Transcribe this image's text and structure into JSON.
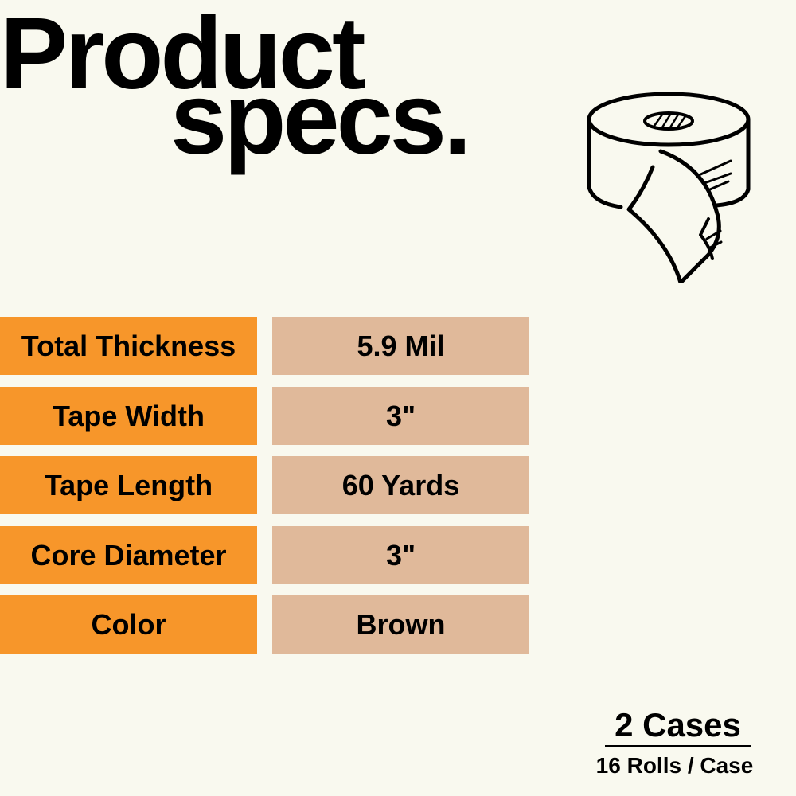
{
  "title": {
    "line1": "Product",
    "line2": "specs."
  },
  "illustration": {
    "icon": "tape-roll-icon"
  },
  "specs": [
    {
      "label": "Total Thickness",
      "value": "5.9 Mil"
    },
    {
      "label": "Tape Width",
      "value": "3\""
    },
    {
      "label": "Tape Length",
      "value": "60 Yards"
    },
    {
      "label": "Core Diameter",
      "value": "3\""
    },
    {
      "label": "Color",
      "value": "Brown"
    }
  ],
  "quantity": {
    "cases": "2 Cases",
    "per_case": "16 Rolls / Case"
  },
  "colors": {
    "background": "#f9f9ef",
    "label_bg": "#f7962a",
    "value_bg": "#e0b99a"
  }
}
